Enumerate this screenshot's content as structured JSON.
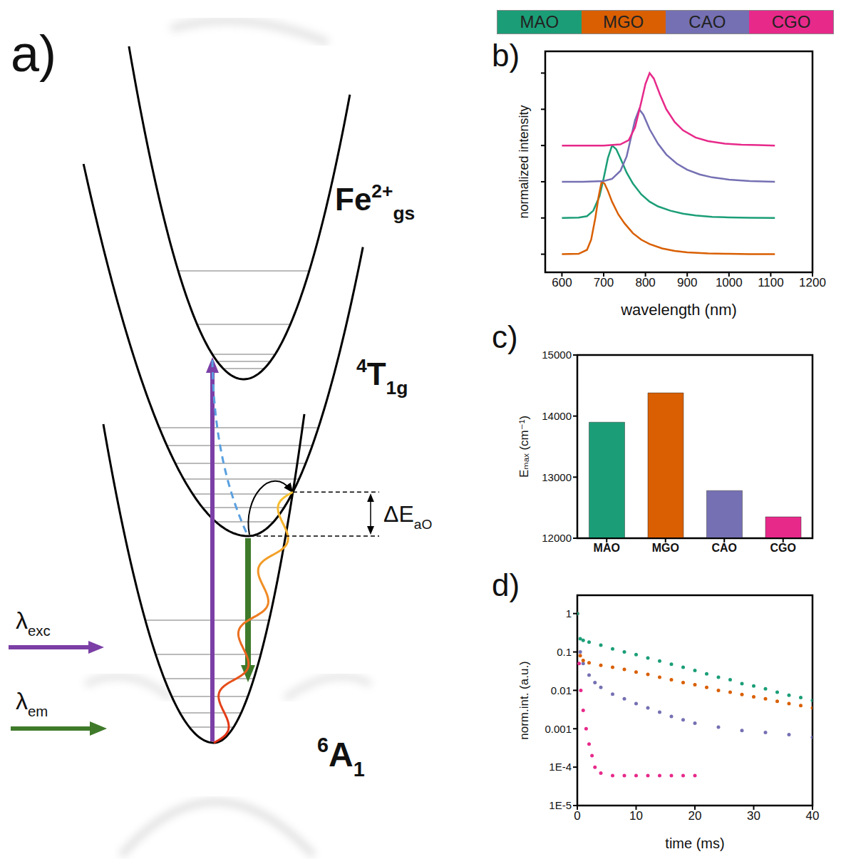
{
  "panel_labels": [
    "a)",
    "b)",
    "c)",
    "d)"
  ],
  "diagram": {
    "states": [
      {
        "base": "Fe",
        "sup": "2+",
        "sub": "gs"
      },
      {
        "pre_sup": "4",
        "base": "T",
        "sub": "1g"
      },
      {
        "pre_sup": "6",
        "base": "A",
        "sub": "1"
      }
    ],
    "activation_energy": {
      "base": "ΔE",
      "sub": "aO"
    },
    "excitation": {
      "base": "λ",
      "sub": "exc"
    },
    "emission": {
      "base": "λ",
      "sub": "em"
    }
  },
  "chart_data": [
    {
      "type": "line",
      "x_label": "wavelength (nm)",
      "y_label": "normalized intensity",
      "legend": "top",
      "tick_labels": "x",
      "xlim": [
        560,
        1200
      ],
      "xticks": [
        600,
        700,
        800,
        900,
        1000,
        1100,
        1200
      ],
      "ylim": [
        -0.5,
        5.6
      ],
      "yticks": [
        0,
        1,
        2,
        3,
        4,
        5
      ],
      "series": [
        {
          "name": "MAO",
          "color": "#1b9e77",
          "x": [
            600,
            640,
            660,
            675,
            690,
            700,
            710,
            720,
            730,
            740,
            755,
            770,
            790,
            810,
            830,
            860,
            890,
            920,
            960,
            1000,
            1050,
            1110
          ],
          "values": [
            1,
            1.01,
            1.05,
            1.2,
            1.6,
            2.1,
            2.65,
            3.0,
            2.9,
            2.65,
            2.25,
            1.95,
            1.65,
            1.45,
            1.32,
            1.2,
            1.12,
            1.07,
            1.03,
            1.015,
            1.005,
            1
          ]
        },
        {
          "name": "MGO",
          "color": "#d95f02",
          "x": [
            600,
            640,
            660,
            670,
            680,
            688,
            695,
            702,
            710,
            720,
            735,
            750,
            770,
            790,
            810,
            840,
            870,
            900,
            950,
            1000,
            1050,
            1110
          ],
          "values": [
            0,
            0.01,
            0.12,
            0.4,
            1.0,
            1.6,
            2.0,
            1.95,
            1.75,
            1.45,
            1.1,
            0.85,
            0.58,
            0.4,
            0.28,
            0.16,
            0.09,
            0.05,
            0.02,
            0.01,
            0.004,
            0
          ]
        },
        {
          "name": "CAO",
          "color": "#7570b3",
          "x": [
            600,
            650,
            700,
            720,
            740,
            755,
            765,
            775,
            785,
            795,
            810,
            830,
            850,
            875,
            900,
            930,
            960,
            1000,
            1050,
            1110
          ],
          "values": [
            2,
            2,
            2.02,
            2.08,
            2.3,
            2.7,
            3.2,
            3.7,
            4.0,
            3.85,
            3.45,
            3.05,
            2.75,
            2.5,
            2.33,
            2.2,
            2.12,
            2.06,
            2.02,
            2
          ]
        },
        {
          "name": "CGO",
          "color": "#e7298a",
          "x": [
            600,
            650,
            700,
            740,
            760,
            775,
            790,
            800,
            810,
            820,
            835,
            850,
            870,
            890,
            920,
            950,
            990,
            1030,
            1070,
            1110
          ],
          "values": [
            3,
            3,
            3,
            3.03,
            3.15,
            3.5,
            4.2,
            4.7,
            5.0,
            4.85,
            4.4,
            4.0,
            3.65,
            3.42,
            3.22,
            3.12,
            3.05,
            3.02,
            3.01,
            3
          ]
        }
      ]
    },
    {
      "type": "bar",
      "y_label": "Eₘₐₓ (cm⁻¹)",
      "categories": [
        "MAO",
        "MGO",
        "CAO",
        "CGO"
      ],
      "values": [
        13900,
        14380,
        12780,
        12350
      ],
      "colors": [
        "#1b9e77",
        "#d95f02",
        "#7570b3",
        "#e7298a"
      ],
      "ylim": [
        12000,
        15000
      ],
      "yticks": [
        12000,
        13000,
        14000,
        15000
      ]
    },
    {
      "type": "scatter",
      "log": "y",
      "marker": "dot",
      "x_label": "time (ms)",
      "y_label": "norm.int. (a.u.)",
      "xlim": [
        0,
        40
      ],
      "xticks": [
        0,
        10,
        20,
        30,
        40
      ],
      "ylim": [
        1e-05,
        3
      ],
      "yticks": [
        {
          "value": 1e-05,
          "label": "1E-5"
        },
        {
          "value": 0.0001,
          "label": "1E-4"
        },
        0.001,
        0.01,
        0.1,
        1
      ],
      "series": [
        {
          "color": "#e7298a",
          "x": [
            0,
            0.3,
            0.6,
            1,
            1.5,
            2,
            2.5,
            3,
            4,
            6,
            8,
            10,
            12,
            14,
            16,
            18,
            20
          ],
          "values": [
            1,
            0.05,
            0.01,
            0.003,
            0.001,
            0.0004,
            0.0002,
            0.0001,
            7e-05,
            6e-05,
            6e-05,
            6e-05,
            6e-05,
            6e-05,
            6e-05,
            6e-05,
            6e-05
          ]
        },
        {
          "color": "#7570b3",
          "x": [
            0,
            0.5,
            1,
            2,
            3,
            4,
            6,
            8,
            10,
            12,
            14,
            16,
            18,
            20,
            24,
            28,
            32,
            36,
            40
          ],
          "values": [
            1,
            0.1,
            0.05,
            0.025,
            0.016,
            0.012,
            0.008,
            0.006,
            0.0045,
            0.0035,
            0.0027,
            0.0021,
            0.0017,
            0.0014,
            0.0011,
            0.0009,
            0.0008,
            0.0007,
            0.0006
          ]
        },
        {
          "color": "#d95f02",
          "x": [
            0,
            0.5,
            1,
            2,
            4,
            6,
            8,
            10,
            12,
            14,
            16,
            18,
            20,
            22,
            24,
            26,
            28,
            30,
            32,
            34,
            36,
            38,
            40
          ],
          "values": [
            1,
            0.08,
            0.06,
            0.052,
            0.045,
            0.04,
            0.035,
            0.03,
            0.026,
            0.022,
            0.019,
            0.016,
            0.014,
            0.012,
            0.01,
            0.009,
            0.0078,
            0.0068,
            0.006,
            0.0052,
            0.0045,
            0.004,
            0.0035
          ]
        },
        {
          "color": "#1b9e77",
          "x": [
            0,
            0.5,
            1,
            2,
            4,
            6,
            8,
            10,
            12,
            14,
            16,
            18,
            20,
            22,
            24,
            26,
            28,
            30,
            32,
            34,
            36,
            38,
            40
          ],
          "values": [
            1,
            0.22,
            0.2,
            0.18,
            0.15,
            0.12,
            0.1,
            0.085,
            0.07,
            0.058,
            0.048,
            0.04,
            0.033,
            0.027,
            0.022,
            0.019,
            0.015,
            0.013,
            0.011,
            0.009,
            0.0075,
            0.0065,
            0.0055
          ]
        }
      ]
    }
  ]
}
